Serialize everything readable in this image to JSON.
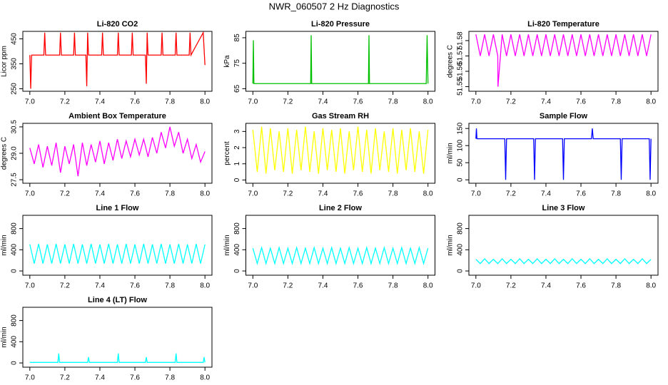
{
  "title": "NWR_060507  2 Hz Diagnostics",
  "chart_data": [
    {
      "type": "line",
      "title": "Li-820 CO2",
      "y_label": "Licor ppm",
      "color": "#ff0000",
      "x": [
        7.0,
        7.005,
        7.01,
        7.08,
        7.085,
        7.09,
        7.17,
        7.175,
        7.18,
        7.25,
        7.255,
        7.26,
        7.32,
        7.325,
        7.33,
        7.335,
        7.41,
        7.415,
        7.42,
        7.5,
        7.505,
        7.51,
        7.58,
        7.585,
        7.59,
        7.66,
        7.665,
        7.67,
        7.675,
        7.75,
        7.755,
        7.76,
        7.83,
        7.835,
        7.84,
        7.91,
        7.915,
        7.92,
        7.99,
        8.0
      ],
      "values": [
        385,
        250,
        385,
        385,
        475,
        385,
        385,
        475,
        385,
        385,
        475,
        385,
        385,
        260,
        475,
        385,
        385,
        475,
        385,
        385,
        475,
        385,
        385,
        475,
        385,
        385,
        270,
        475,
        385,
        385,
        475,
        385,
        385,
        475,
        385,
        385,
        475,
        385,
        475,
        345
      ],
      "xlim": [
        6.96,
        8.04
      ],
      "ylim": [
        240,
        480
      ],
      "xticks": [
        {
          "value": 7,
          "label": "7.0"
        },
        7.2,
        7.4,
        7.6,
        7.8,
        {
          "value": 8,
          "label": "8.0"
        }
      ],
      "yticks": [
        250,
        350,
        450
      ]
    },
    {
      "type": "line",
      "title": "Li-820 Pressure",
      "y_label": "kPa",
      "color": "#00c000",
      "x": [
        7.0,
        7.003,
        7.006,
        7.33,
        7.333,
        7.336,
        7.66,
        7.663,
        7.666,
        7.99,
        7.995,
        8.0
      ],
      "values": [
        67,
        84,
        67,
        67,
        86,
        67,
        67,
        86,
        67,
        67,
        86,
        67
      ],
      "xlim": [
        6.96,
        8.04
      ],
      "ylim": [
        64,
        87.5
      ],
      "xticks": [
        {
          "value": 7,
          "label": "7.0"
        },
        7.2,
        7.4,
        7.6,
        7.8,
        {
          "value": 8,
          "label": "8.0"
        }
      ],
      "yticks": [
        65,
        75,
        85
      ]
    },
    {
      "type": "line",
      "title": "Li-820 Temperature",
      "y_label": "degrees C",
      "color": "#ff00ff",
      "x": [
        7.0,
        7.025,
        7.05,
        7.075,
        7.1,
        7.125,
        7.126,
        7.15,
        7.175,
        7.2,
        7.225,
        7.25,
        7.275,
        7.3,
        7.325,
        7.35,
        7.375,
        7.4,
        7.425,
        7.45,
        7.475,
        7.5,
        7.525,
        7.55,
        7.575,
        7.6,
        7.625,
        7.65,
        7.675,
        7.7,
        7.725,
        7.75,
        7.775,
        7.8,
        7.825,
        7.85,
        7.875,
        7.9,
        7.925,
        7.95,
        7.975,
        8.0
      ],
      "values": [
        51.584,
        51.57,
        51.584,
        51.57,
        51.584,
        51.57,
        51.55,
        51.584,
        51.57,
        51.584,
        51.57,
        51.584,
        51.57,
        51.584,
        51.57,
        51.584,
        51.57,
        51.584,
        51.57,
        51.584,
        51.57,
        51.584,
        51.57,
        51.584,
        51.57,
        51.584,
        51.57,
        51.584,
        51.57,
        51.584,
        51.57,
        51.584,
        51.57,
        51.584,
        51.57,
        51.584,
        51.57,
        51.584,
        51.57,
        51.584,
        51.57,
        51.584
      ],
      "xlim": [
        6.96,
        8.04
      ],
      "ylim": [
        51.547,
        51.586
      ],
      "xticks": [
        {
          "value": 7,
          "label": "7.0"
        },
        7.2,
        7.4,
        7.6,
        7.8,
        {
          "value": 8,
          "label": "8.0"
        }
      ],
      "yticks": [
        51.55,
        51.56,
        51.57,
        51.58
      ]
    },
    {
      "type": "line",
      "title": "Ambient Box Temperature",
      "y_label": "degrees C",
      "color": "#ff00ff",
      "x": [
        7.0,
        7.025,
        7.05,
        7.075,
        7.1,
        7.125,
        7.15,
        7.175,
        7.2,
        7.225,
        7.25,
        7.275,
        7.3,
        7.325,
        7.35,
        7.375,
        7.4,
        7.425,
        7.45,
        7.475,
        7.5,
        7.525,
        7.55,
        7.575,
        7.6,
        7.625,
        7.65,
        7.675,
        7.7,
        7.725,
        7.75,
        7.775,
        7.8,
        7.825,
        7.85,
        7.875,
        7.9,
        7.925,
        7.95,
        7.975,
        8.0
      ],
      "values": [
        29.3,
        28.4,
        29.5,
        28.2,
        29.4,
        28.3,
        29.6,
        27.9,
        29.4,
        28.4,
        29.5,
        27.7,
        29.6,
        28.3,
        29.5,
        28.5,
        29.7,
        28.4,
        29.6,
        28.6,
        29.8,
        28.7,
        29.7,
        28.8,
        29.8,
        28.9,
        29.8,
        28.8,
        29.9,
        29.0,
        30.2,
        29.3,
        30.5,
        29.4,
        30.2,
        29.0,
        29.8,
        28.7,
        29.5,
        28.5,
        29.1
      ],
      "xlim": [
        6.96,
        8.04
      ],
      "ylim": [
        27.3,
        30.7
      ],
      "xticks": [
        {
          "value": 7,
          "label": "7.0"
        },
        7.2,
        7.4,
        7.6,
        7.8,
        {
          "value": 8,
          "label": "8.0"
        }
      ],
      "yticks": [
        27.5,
        {
          "value": 29,
          "label": "29.0"
        },
        30.5
      ]
    },
    {
      "type": "line",
      "title": "Gas Stream RH",
      "y_label": "percent",
      "color": "#ffff00",
      "x": [
        7.0,
        7.025,
        7.05,
        7.075,
        7.1,
        7.125,
        7.15,
        7.175,
        7.2,
        7.225,
        7.25,
        7.275,
        7.3,
        7.325,
        7.35,
        7.375,
        7.4,
        7.425,
        7.45,
        7.475,
        7.5,
        7.525,
        7.55,
        7.575,
        7.6,
        7.625,
        7.65,
        7.675,
        7.7,
        7.725,
        7.75,
        7.775,
        7.8,
        7.825,
        7.85,
        7.875,
        7.9,
        7.925,
        7.95,
        7.975,
        8.0
      ],
      "values": [
        3.1,
        0.5,
        3.3,
        0.4,
        3.2,
        0.6,
        3.0,
        0.5,
        3.2,
        0.4,
        3.1,
        0.6,
        3.3,
        0.5,
        3.0,
        0.4,
        3.2,
        0.6,
        3.1,
        0.5,
        3.2,
        0.4,
        3.0,
        0.6,
        3.3,
        0.5,
        3.1,
        0.4,
        3.2,
        0.6,
        3.0,
        0.5,
        3.2,
        0.4,
        3.1,
        0.6,
        3.2,
        0.5,
        3.0,
        0.4,
        3.1
      ],
      "xlim": [
        6.96,
        8.04
      ],
      "ylim": [
        -0.2,
        3.5
      ],
      "xticks": [
        {
          "value": 7,
          "label": "7.0"
        },
        7.2,
        7.4,
        7.6,
        7.8,
        {
          "value": 8,
          "label": "8.0"
        }
      ],
      "yticks": [
        0,
        1,
        2,
        3
      ]
    },
    {
      "type": "line",
      "title": "Sample Flow",
      "y_label": "ml/min",
      "color": "#0000ff",
      "x": [
        7.0,
        7.003,
        7.006,
        7.165,
        7.17,
        7.175,
        7.33,
        7.335,
        7.34,
        7.495,
        7.5,
        7.505,
        7.66,
        7.665,
        7.67,
        7.825,
        7.83,
        7.835,
        7.99,
        7.995,
        8.0
      ],
      "values": [
        120,
        150,
        120,
        120,
        0,
        120,
        120,
        0,
        120,
        120,
        0,
        120,
        120,
        150,
        120,
        120,
        0,
        120,
        120,
        0,
        120
      ],
      "xlim": [
        6.96,
        8.04
      ],
      "ylim": [
        -10,
        165
      ],
      "xticks": [
        {
          "value": 7,
          "label": "7.0"
        },
        7.2,
        7.4,
        7.6,
        7.8,
        {
          "value": 8,
          "label": "8.0"
        }
      ],
      "yticks": [
        0,
        50,
        100,
        150
      ]
    },
    {
      "type": "line",
      "title": "Line 1 Flow",
      "y_label": "ml/min",
      "color": "#00ffff",
      "x": [
        7.0,
        7.025,
        7.05,
        7.075,
        7.1,
        7.125,
        7.15,
        7.175,
        7.2,
        7.225,
        7.25,
        7.275,
        7.3,
        7.325,
        7.35,
        7.375,
        7.4,
        7.425,
        7.45,
        7.475,
        7.5,
        7.525,
        7.55,
        7.575,
        7.6,
        7.625,
        7.65,
        7.675,
        7.7,
        7.725,
        7.75,
        7.775,
        7.8,
        7.825,
        7.85,
        7.875,
        7.9,
        7.925,
        7.95,
        7.975,
        8.0
      ],
      "values": [
        500,
        140,
        510,
        140,
        500,
        140,
        510,
        140,
        500,
        140,
        510,
        140,
        500,
        140,
        510,
        140,
        500,
        140,
        510,
        140,
        500,
        140,
        510,
        140,
        500,
        140,
        510,
        140,
        500,
        140,
        510,
        140,
        500,
        140,
        510,
        140,
        500,
        140,
        510,
        140,
        500
      ],
      "xlim": [
        6.96,
        8.04
      ],
      "ylim": [
        -80,
        1050
      ],
      "xticks": [
        {
          "value": 7,
          "label": "7.0"
        },
        7.2,
        7.4,
        7.6,
        7.8,
        {
          "value": 8,
          "label": "8.0"
        }
      ],
      "yticks": [
        0,
        400,
        800
      ]
    },
    {
      "type": "line",
      "title": "Line 2 Flow",
      "y_label": "ml/min",
      "color": "#00ffff",
      "x": [
        7.0,
        7.025,
        7.05,
        7.075,
        7.1,
        7.125,
        7.15,
        7.175,
        7.2,
        7.225,
        7.25,
        7.275,
        7.3,
        7.325,
        7.35,
        7.375,
        7.4,
        7.425,
        7.45,
        7.475,
        7.5,
        7.525,
        7.55,
        7.575,
        7.6,
        7.625,
        7.65,
        7.675,
        7.7,
        7.725,
        7.75,
        7.775,
        7.8,
        7.825,
        7.85,
        7.875,
        7.9,
        7.925,
        7.95,
        7.975,
        8.0
      ],
      "values": [
        430,
        140,
        440,
        140,
        430,
        140,
        440,
        140,
        430,
        140,
        440,
        140,
        430,
        140,
        440,
        140,
        430,
        140,
        440,
        140,
        430,
        140,
        440,
        140,
        430,
        140,
        440,
        140,
        430,
        140,
        440,
        140,
        430,
        140,
        440,
        140,
        430,
        140,
        440,
        140,
        430
      ],
      "xlim": [
        6.96,
        8.04
      ],
      "ylim": [
        -80,
        1050
      ],
      "xticks": [
        {
          "value": 7,
          "label": "7.0"
        },
        7.2,
        7.4,
        7.6,
        7.8,
        {
          "value": 8,
          "label": "8.0"
        }
      ],
      "yticks": [
        0,
        400,
        800
      ]
    },
    {
      "type": "line",
      "title": "Line 3 Flow",
      "y_label": "ml/min",
      "color": "#00ffff",
      "x": [
        7.0,
        7.025,
        7.05,
        7.075,
        7.1,
        7.125,
        7.15,
        7.175,
        7.2,
        7.225,
        7.25,
        7.275,
        7.3,
        7.325,
        7.35,
        7.375,
        7.4,
        7.425,
        7.45,
        7.475,
        7.5,
        7.525,
        7.55,
        7.575,
        7.6,
        7.625,
        7.65,
        7.675,
        7.7,
        7.725,
        7.75,
        7.775,
        7.8,
        7.825,
        7.85,
        7.875,
        7.9,
        7.925,
        7.95,
        7.975,
        8.0
      ],
      "values": [
        220,
        140,
        230,
        140,
        220,
        140,
        230,
        140,
        220,
        140,
        230,
        140,
        220,
        140,
        230,
        140,
        220,
        140,
        230,
        140,
        220,
        140,
        230,
        140,
        220,
        140,
        230,
        140,
        220,
        140,
        230,
        140,
        220,
        140,
        230,
        140,
        220,
        140,
        230,
        140,
        220
      ],
      "xlim": [
        6.96,
        8.04
      ],
      "ylim": [
        -80,
        1050
      ],
      "xticks": [
        {
          "value": 7,
          "label": "7.0"
        },
        7.2,
        7.4,
        7.6,
        7.8,
        {
          "value": 8,
          "label": "8.0"
        }
      ],
      "yticks": [
        0,
        400,
        800
      ]
    },
    {
      "type": "line",
      "title": "Line 4 (LT) Flow",
      "y_label": "ml/min",
      "color": "#00ffff",
      "x": [
        7.0,
        7.16,
        7.165,
        7.17,
        7.33,
        7.335,
        7.34,
        7.5,
        7.505,
        7.51,
        7.66,
        7.665,
        7.67,
        7.83,
        7.835,
        7.84,
        7.99,
        7.995,
        8.0
      ],
      "values": [
        10,
        10,
        180,
        10,
        10,
        110,
        10,
        10,
        180,
        10,
        10,
        110,
        10,
        10,
        180,
        10,
        10,
        110,
        10
      ],
      "xlim": [
        6.96,
        8.04
      ],
      "ylim": [
        -80,
        1050
      ],
      "xticks": [
        {
          "value": 7,
          "label": "7.0"
        },
        7.2,
        7.4,
        7.6,
        7.8,
        {
          "value": 8,
          "label": "8.0"
        }
      ],
      "yticks": [
        0,
        400,
        800
      ]
    }
  ]
}
